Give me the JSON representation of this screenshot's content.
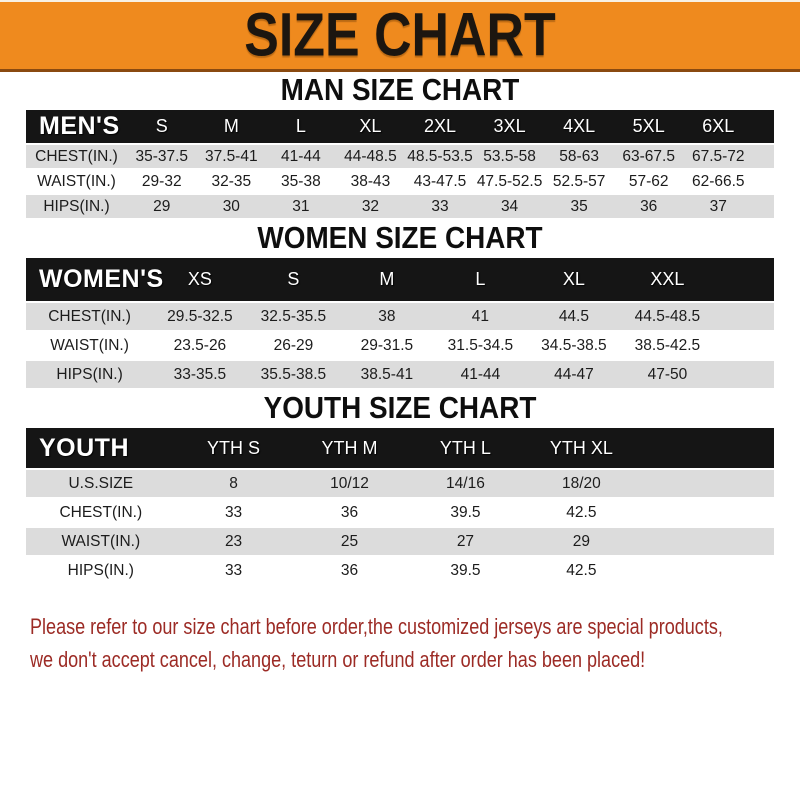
{
  "banner": {
    "title": "SIZE CHART"
  },
  "colors": {
    "banner_bg": "#EF8A1E",
    "bar_bg": "#151515",
    "row_gray": "#DCDCDC",
    "notice_red": "#9C2B25"
  },
  "sections": [
    {
      "title": "MAN SIZE CHART",
      "corner": "MEN'S",
      "sizes": [
        "S",
        "M",
        "L",
        "XL",
        "2XL",
        "3XL",
        "4XL",
        "5XL",
        "6XL"
      ],
      "rows": [
        {
          "label": "CHEST(IN.)",
          "values": [
            "35-37.5",
            "37.5-41",
            "41-44",
            "44-48.5",
            "48.5-53.5",
            "53.5-58",
            "58-63",
            "63-67.5",
            "67.5-72"
          ]
        },
        {
          "label": "WAIST(IN.)",
          "values": [
            "29-32",
            "32-35",
            "35-38",
            "38-43",
            "43-47.5",
            "47.5-52.5",
            "52.5-57",
            "57-62",
            "62-66.5"
          ]
        },
        {
          "label": "HIPS(IN.)",
          "values": [
            "29",
            "30",
            "31",
            "32",
            "33",
            "34",
            "35",
            "36",
            "37"
          ]
        }
      ]
    },
    {
      "title": "WOMEN SIZE CHART",
      "corner": "WOMEN'S",
      "sizes": [
        "XS",
        "S",
        "M",
        "L",
        "XL",
        "XXL"
      ],
      "rows": [
        {
          "label": "CHEST(IN.)",
          "values": [
            "29.5-32.5",
            "32.5-35.5",
            "38",
            "41",
            "44.5",
            "44.5-48.5"
          ]
        },
        {
          "label": "WAIST(IN.)",
          "values": [
            "23.5-26",
            "26-29",
            "29-31.5",
            "31.5-34.5",
            "34.5-38.5",
            "38.5-42.5"
          ]
        },
        {
          "label": "HIPS(IN.)",
          "values": [
            "33-35.5",
            "35.5-38.5",
            "38.5-41",
            "41-44",
            "44-47",
            "47-50"
          ]
        }
      ]
    },
    {
      "title": "YOUTH SIZE CHART",
      "corner": "YOUTH",
      "sizes": [
        "YTH S",
        "YTH M",
        "YTH L",
        "YTH XL"
      ],
      "rows": [
        {
          "label": "U.S.SIZE",
          "values": [
            "8",
            "10/12",
            "14/16",
            "18/20"
          ]
        },
        {
          "label": "CHEST(IN.)",
          "values": [
            "33",
            "36",
            "39.5",
            "42.5"
          ]
        },
        {
          "label": "WAIST(IN.)",
          "values": [
            "23",
            "25",
            "27",
            "29"
          ]
        },
        {
          "label": "HIPS(IN.)",
          "values": [
            "33",
            "36",
            "39.5",
            "42.5"
          ]
        }
      ]
    }
  ],
  "notice": {
    "line1": "Please refer to our size chart before order,the customized jerseys are special products,",
    "line2": "we don't accept cancel, change, teturn or refund after order has been placed!"
  }
}
